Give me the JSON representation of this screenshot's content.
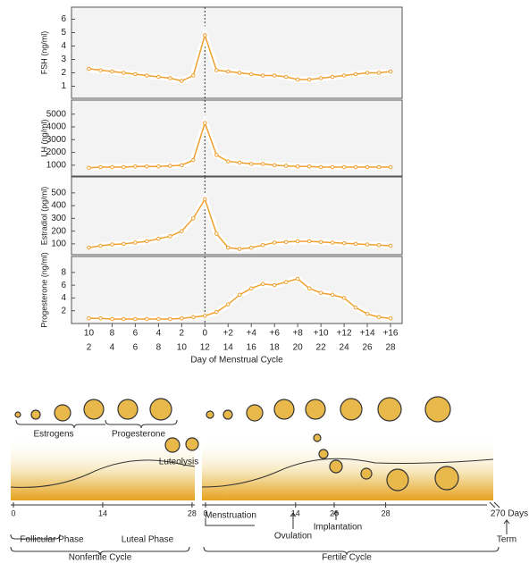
{
  "chart_data": [
    {
      "type": "line",
      "ylabel": "FSH (ng/ml)",
      "color": "#f0a030",
      "x": [
        2,
        3,
        4,
        5,
        6,
        7,
        8,
        9,
        10,
        11,
        12,
        13,
        14,
        15,
        16,
        17,
        18,
        19,
        20,
        21,
        22,
        23,
        24,
        25,
        26,
        27,
        28
      ],
      "values": [
        2.3,
        2.2,
        2.1,
        2.0,
        1.9,
        1.8,
        1.7,
        1.6,
        1.4,
        1.8,
        4.8,
        2.2,
        2.1,
        2.0,
        1.9,
        1.8,
        1.8,
        1.7,
        1.5,
        1.5,
        1.6,
        1.7,
        1.8,
        1.9,
        2.0,
        2.0,
        2.1
      ],
      "xlim": [
        0.5,
        29
      ],
      "ylim": [
        0.1,
        6.9
      ],
      "yticks": [
        1,
        2,
        3,
        4,
        5,
        6
      ],
      "vline": 12
    },
    {
      "type": "line",
      "ylabel": "LH (ng/ml)",
      "color": "#f0a030",
      "x": [
        2,
        3,
        4,
        5,
        6,
        7,
        8,
        9,
        10,
        11,
        12,
        13,
        14,
        15,
        16,
        17,
        18,
        19,
        20,
        21,
        22,
        23,
        24,
        25,
        26,
        27,
        28
      ],
      "values": [
        800,
        850,
        850,
        850,
        900,
        900,
        900,
        950,
        1000,
        1400,
        4300,
        1800,
        1300,
        1200,
        1100,
        1100,
        1000,
        950,
        900,
        900,
        850,
        850,
        850,
        850,
        850,
        850,
        850
      ],
      "xlim": [
        0.5,
        29
      ],
      "ylim": [
        150,
        6100
      ],
      "yticks": [
        1000,
        2000,
        3000,
        4000,
        5000
      ],
      "vline": 12
    },
    {
      "type": "line",
      "ylabel": "Estradiol (pg/ml)",
      "color": "#f0a030",
      "x": [
        2,
        3,
        4,
        5,
        6,
        7,
        8,
        9,
        10,
        11,
        12,
        13,
        14,
        15,
        16,
        17,
        18,
        19,
        20,
        21,
        22,
        23,
        24,
        25,
        26,
        27,
        28
      ],
      "values": [
        70,
        85,
        95,
        100,
        110,
        120,
        140,
        160,
        200,
        300,
        450,
        180,
        70,
        60,
        70,
        90,
        110,
        115,
        120,
        120,
        115,
        110,
        105,
        100,
        95,
        90,
        85
      ],
      "xlim": [
        0.5,
        29
      ],
      "ylim": [
        15,
        625
      ],
      "yticks": [
        100,
        200,
        300,
        400,
        500
      ],
      "vline": 12
    },
    {
      "type": "line",
      "ylabel": "Progesterone (ng/ml)",
      "color": "#f0a030",
      "x": [
        2,
        3,
        4,
        5,
        6,
        7,
        8,
        9,
        10,
        11,
        12,
        13,
        14,
        15,
        16,
        17,
        18,
        19,
        20,
        21,
        22,
        23,
        24,
        25,
        26,
        27,
        28
      ],
      "values": [
        0.8,
        0.8,
        0.7,
        0.7,
        0.7,
        0.7,
        0.7,
        0.7,
        0.8,
        1.0,
        1.2,
        1.8,
        3,
        4.5,
        5.5,
        6.2,
        6.0,
        6.5,
        7.0,
        5.5,
        4.8,
        4.5,
        4.0,
        2.5,
        1.5,
        1.0,
        0.8
      ],
      "xlim": [
        0.5,
        29
      ],
      "ylim": [
        0,
        10.5
      ],
      "yticks": [
        2,
        4,
        6,
        8
      ],
      "vline": 12,
      "xlabel": "Day of Menstrual Cycle",
      "xticks": [
        2,
        4,
        6,
        8,
        10,
        12,
        14,
        16,
        18,
        20,
        22,
        24,
        26,
        28
      ],
      "xticks_top": [
        {
          "value": 2,
          "label": "10"
        },
        {
          "value": 4,
          "label": "8"
        },
        {
          "value": 6,
          "label": "6"
        },
        {
          "value": 8,
          "label": "4"
        },
        {
          "value": 10,
          "label": "2"
        },
        {
          "value": 12,
          "label": "0"
        },
        {
          "value": 14,
          "label": "+2"
        },
        {
          "value": 16,
          "label": "+4"
        },
        {
          "value": 18,
          "label": "+6"
        },
        {
          "value": 20,
          "label": "+8"
        },
        {
          "value": 22,
          "label": "+10"
        },
        {
          "value": 24,
          "label": "+12"
        },
        {
          "value": 26,
          "label": "+14"
        },
        {
          "value": 28,
          "label": "+16"
        }
      ]
    }
  ],
  "diagram": {
    "hormones": [
      "Estrogens",
      "Progesterone"
    ],
    "luteolysis": "Luteolysis",
    "nonfertile_ticks": [
      0,
      14,
      28
    ],
    "fertile_ticks": [
      0,
      14,
      20,
      28
    ],
    "term_tick": "270 Days",
    "events": [
      "Menstruation",
      "Ovulation",
      "Implantation",
      "Term"
    ],
    "phases": [
      "Follicular Phase",
      "Luteal Phase"
    ],
    "cycles": [
      "Nonfertile Cycle",
      "Fertile Cycle"
    ]
  }
}
